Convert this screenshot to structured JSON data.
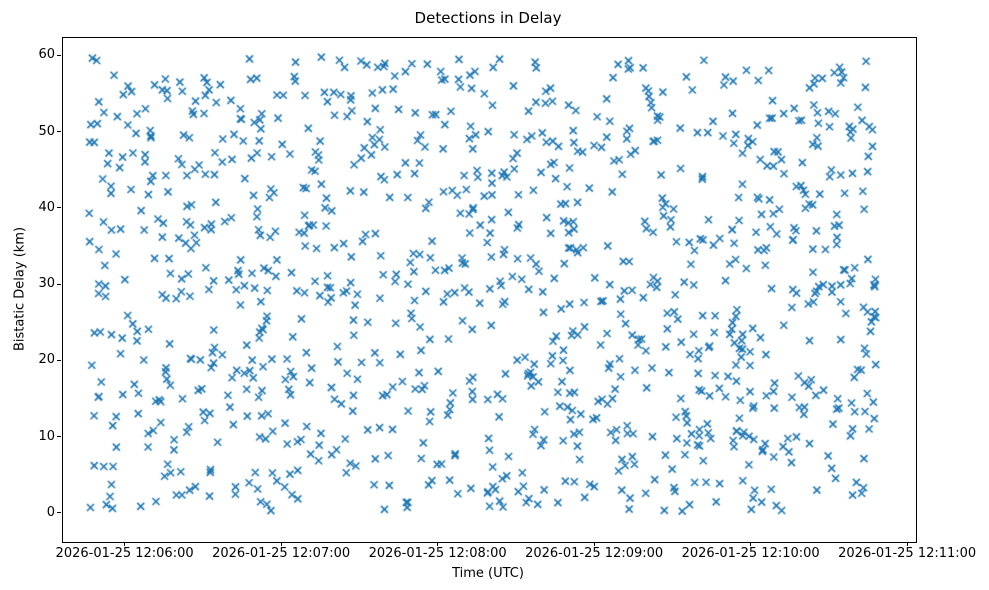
{
  "figure": {
    "title": "Detections in Delay",
    "xlabel": "Time (UTC)",
    "ylabel": "Bistatic Delay (km)"
  },
  "chart_data": {
    "type": "scatter",
    "title": "Detections in Delay",
    "xlabel": "Time (UTC)",
    "ylabel": "Bistatic Delay (km)",
    "x_tick_labels": [
      "2026-01-25 12:06:00",
      "2026-01-25 12:07:00",
      "2026-01-25 12:08:00",
      "2026-01-25 12:09:00",
      "2026-01-25 12:10:00",
      "2026-01-25 12:11:00"
    ],
    "x_tick_seconds": [
      0,
      60,
      120,
      180,
      240,
      300
    ],
    "xlim_seconds": [
      -24,
      303
    ],
    "y_ticks": [
      0,
      10,
      20,
      30,
      40,
      50,
      60
    ],
    "ylim": [
      -3.7,
      62.4
    ],
    "grid": false,
    "marker": "x",
    "marker_color": "#1f77b4",
    "marker_size_px": 7,
    "marker_linewidth_px": 1.6,
    "n_points": 1100,
    "seed": 42,
    "points_distribution": "uniform_random",
    "x_data_range_seconds": [
      -14,
      288
    ],
    "y_data_range": [
      0.2,
      59.9
    ]
  }
}
